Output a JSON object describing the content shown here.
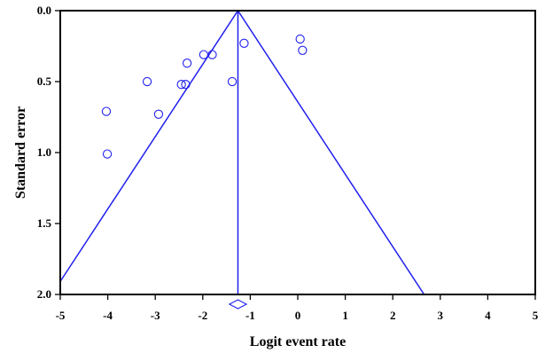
{
  "chart_data": {
    "type": "scatter",
    "title": "",
    "xlabel": "Logit event rate",
    "ylabel": "Standard error",
    "xlim": [
      -5,
      5
    ],
    "ylim": [
      2.0,
      0.0
    ],
    "y_axis_inverted": true,
    "x_ticks": [
      "-5",
      "-4",
      "-3",
      "-2",
      "-1",
      "0",
      "1",
      "2",
      "3",
      "4",
      "5"
    ],
    "y_ticks": [
      "0.0",
      "0.5",
      "1.0",
      "1.5",
      "2.0"
    ],
    "grid": false,
    "series": [
      {
        "marker": "open-circle",
        "points": [
          {
            "x": -4.03,
            "y": 0.71
          },
          {
            "x": -4.01,
            "y": 1.01
          },
          {
            "x": -3.17,
            "y": 0.5
          },
          {
            "x": -2.93,
            "y": 0.73
          },
          {
            "x": -2.45,
            "y": 0.52
          },
          {
            "x": -2.36,
            "y": 0.52
          },
          {
            "x": -2.33,
            "y": 0.37
          },
          {
            "x": -1.98,
            "y": 0.31
          },
          {
            "x": -1.8,
            "y": 0.31
          },
          {
            "x": -1.38,
            "y": 0.5
          },
          {
            "x": -1.13,
            "y": 0.23
          },
          {
            "x": 0.05,
            "y": 0.2
          },
          {
            "x": 0.1,
            "y": 0.28
          }
        ]
      }
    ],
    "pooled_estimate": -1.26,
    "funnel": {
      "apex_x": -1.26,
      "apex_se": 0.0,
      "z": 1.96
    },
    "summary_diamond": {
      "center": -1.26,
      "half_width": 0.18
    },
    "colors": {
      "data": "#2020ee",
      "axes": "#000000",
      "background": "#ffffff"
    }
  }
}
